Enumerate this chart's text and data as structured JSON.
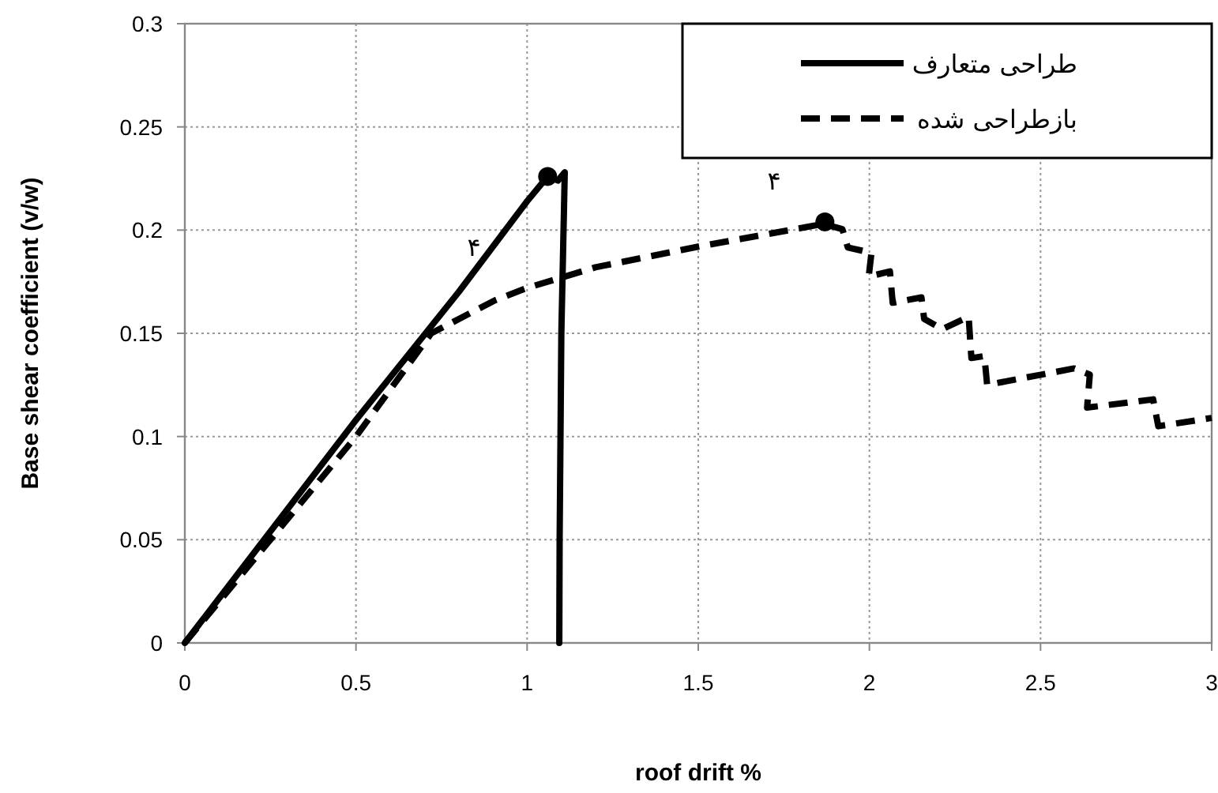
{
  "chart_data": {
    "type": "line",
    "xlabel": "roof drift %",
    "ylabel": "Base shear coefficient (v/w)",
    "xlim": [
      0,
      3
    ],
    "ylim": [
      0,
      0.3
    ],
    "xticks": [
      0,
      0.5,
      1,
      1.5,
      2,
      2.5,
      3
    ],
    "yticks": [
      0,
      0.05,
      0.1,
      0.15,
      0.2,
      0.25,
      0.3
    ],
    "grid": true,
    "legend": "top right",
    "series": [
      {
        "name": "طراحی متعارف",
        "color": "#000000",
        "line_style": "solid",
        "marker": "none",
        "x": [
          0,
          0.5,
          0.8,
          1.0,
          1.06,
          1.09,
          1.11,
          1.1,
          1.095,
          1.094
        ],
        "values": [
          0,
          0.108,
          0.17,
          0.214,
          0.226,
          0.224,
          0.228,
          0.15,
          0.05,
          0
        ]
      },
      {
        "name": "بازطراحی شده",
        "color": "#000000",
        "line_style": "dashed",
        "marker": "none",
        "x": [
          0,
          0.4,
          0.5,
          0.72,
          0.906,
          1.0,
          1.2,
          1.5,
          1.866,
          1.921,
          1.937,
          2.006,
          1.998,
          2.06,
          2.068,
          2.152,
          2.16,
          2.213,
          2.29,
          2.298,
          2.336,
          2.344,
          2.598,
          2.644,
          2.636,
          2.829,
          2.844,
          3.0
        ],
        "values": [
          0,
          0.08,
          0.1,
          0.15,
          0.166,
          0.172,
          0.182,
          0.192,
          0.203,
          0.2005,
          0.1916,
          0.189,
          0.1775,
          0.18,
          0.1648,
          0.1674,
          0.157,
          0.152,
          0.158,
          0.138,
          0.139,
          0.125,
          0.133,
          0.13,
          0.114,
          0.118,
          0.105,
          0.109
        ]
      },
      {
        "type": "scatter",
        "color": "#000000",
        "marker": "circle",
        "x": [
          1.06,
          1.87
        ],
        "values": [
          0.226,
          0.204
        ]
      }
    ],
    "annotations": [
      "۴",
      "۴"
    ]
  }
}
